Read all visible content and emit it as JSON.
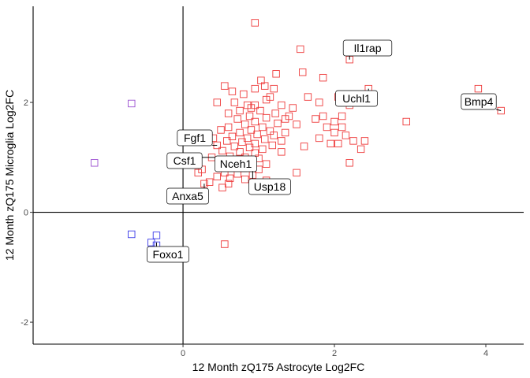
{
  "chart_data": {
    "type": "scatter",
    "xlabel": "12 Month zQ175 Astrocyte Log2FC",
    "ylabel": "12 Month zQ175 Microglia Log2FC",
    "xlim": [
      -1.98,
      4.5
    ],
    "ylim": [
      -2.4,
      3.75
    ],
    "xticks": [
      0,
      2,
      4
    ],
    "yticks": [
      -2,
      0,
      2
    ],
    "xtick_labels": [
      "0",
      "2",
      "4"
    ],
    "ytick_labels": [
      "-2",
      "0",
      "2"
    ],
    "colors": {
      "up": "#ee3b3b",
      "down": "#3a3ae8",
      "mixed": "#9b4fd1"
    },
    "points": [
      {
        "x": 0.95,
        "y": 3.45,
        "g": "up"
      },
      {
        "x": 1.55,
        "y": 2.97,
        "g": "up"
      },
      {
        "x": 2.2,
        "y": 2.78,
        "g": "up"
      },
      {
        "x": 1.58,
        "y": 2.55,
        "g": "up"
      },
      {
        "x": 1.23,
        "y": 2.52,
        "g": "up"
      },
      {
        "x": 1.85,
        "y": 2.45,
        "g": "up"
      },
      {
        "x": 1.03,
        "y": 2.4,
        "g": "up"
      },
      {
        "x": 1.08,
        "y": 2.3,
        "g": "up"
      },
      {
        "x": 0.55,
        "y": 2.3,
        "g": "up"
      },
      {
        "x": 0.95,
        "y": 2.25,
        "g": "up"
      },
      {
        "x": 1.2,
        "y": 2.25,
        "g": "up"
      },
      {
        "x": 0.65,
        "y": 2.2,
        "g": "up"
      },
      {
        "x": 0.8,
        "y": 2.15,
        "g": "up"
      },
      {
        "x": 1.15,
        "y": 2.1,
        "g": "up"
      },
      {
        "x": 0.45,
        "y": 2.0,
        "g": "up"
      },
      {
        "x": 0.68,
        "y": 2.0,
        "g": "up"
      },
      {
        "x": 0.85,
        "y": 1.95,
        "g": "up"
      },
      {
        "x": 0.9,
        "y": 1.9,
        "g": "up"
      },
      {
        "x": 0.95,
        "y": 1.95,
        "g": "up"
      },
      {
        "x": 1.1,
        "y": 2.05,
        "g": "up"
      },
      {
        "x": 1.3,
        "y": 1.95,
        "g": "up"
      },
      {
        "x": 1.45,
        "y": 1.9,
        "g": "up"
      },
      {
        "x": 0.75,
        "y": 1.85,
        "g": "up"
      },
      {
        "x": 1.02,
        "y": 1.85,
        "g": "up"
      },
      {
        "x": 1.22,
        "y": 1.8,
        "g": "up"
      },
      {
        "x": 1.4,
        "y": 1.75,
        "g": "up"
      },
      {
        "x": 0.6,
        "y": 1.8,
        "g": "up"
      },
      {
        "x": 0.88,
        "y": 1.75,
        "g": "up"
      },
      {
        "x": 1.1,
        "y": 1.72,
        "g": "up"
      },
      {
        "x": 1.35,
        "y": 1.7,
        "g": "up"
      },
      {
        "x": 0.72,
        "y": 1.7,
        "g": "up"
      },
      {
        "x": 0.95,
        "y": 1.65,
        "g": "up"
      },
      {
        "x": 1.25,
        "y": 1.62,
        "g": "up"
      },
      {
        "x": 0.82,
        "y": 1.6,
        "g": "up"
      },
      {
        "x": 1.05,
        "y": 1.55,
        "g": "up"
      },
      {
        "x": 1.5,
        "y": 1.6,
        "g": "up"
      },
      {
        "x": 0.6,
        "y": 1.55,
        "g": "up"
      },
      {
        "x": 0.9,
        "y": 1.5,
        "g": "up"
      },
      {
        "x": 1.15,
        "y": 1.48,
        "g": "up"
      },
      {
        "x": 1.35,
        "y": 1.45,
        "g": "up"
      },
      {
        "x": 0.5,
        "y": 1.5,
        "g": "up"
      },
      {
        "x": 0.75,
        "y": 1.45,
        "g": "up"
      },
      {
        "x": 0.98,
        "y": 1.42,
        "g": "up"
      },
      {
        "x": 1.2,
        "y": 1.4,
        "g": "up"
      },
      {
        "x": 0.65,
        "y": 1.38,
        "g": "up"
      },
      {
        "x": 0.85,
        "y": 1.35,
        "g": "up"
      },
      {
        "x": 1.08,
        "y": 1.33,
        "g": "up"
      },
      {
        "x": 1.3,
        "y": 1.3,
        "g": "up"
      },
      {
        "x": 0.4,
        "y": 1.35,
        "g": "up"
      },
      {
        "x": 0.58,
        "y": 1.3,
        "g": "up"
      },
      {
        "x": 0.78,
        "y": 1.28,
        "g": "up"
      },
      {
        "x": 0.95,
        "y": 1.25,
        "g": "up"
      },
      {
        "x": 1.18,
        "y": 1.22,
        "g": "up"
      },
      {
        "x": 0.45,
        "y": 1.22,
        "g": "up"
      },
      {
        "x": 0.68,
        "y": 1.2,
        "g": "up"
      },
      {
        "x": 0.88,
        "y": 1.18,
        "g": "up"
      },
      {
        "x": 1.05,
        "y": 1.15,
        "g": "up"
      },
      {
        "x": 0.52,
        "y": 1.12,
        "g": "up"
      },
      {
        "x": 0.75,
        "y": 1.1,
        "g": "up"
      },
      {
        "x": 0.95,
        "y": 1.08,
        "g": "up"
      },
      {
        "x": 1.3,
        "y": 1.1,
        "g": "up"
      },
      {
        "x": 0.62,
        "y": 1.02,
        "g": "up"
      },
      {
        "x": 0.82,
        "y": 1.0,
        "g": "up"
      },
      {
        "x": 1.0,
        "y": 0.98,
        "g": "up"
      },
      {
        "x": 0.38,
        "y": 1.0,
        "g": "up"
      },
      {
        "x": 0.55,
        "y": 0.95,
        "g": "up"
      },
      {
        "x": 0.7,
        "y": 0.92,
        "g": "up"
      },
      {
        "x": 0.88,
        "y": 0.9,
        "g": "up"
      },
      {
        "x": 1.1,
        "y": 0.88,
        "g": "up"
      },
      {
        "x": 0.48,
        "y": 0.85,
        "g": "up"
      },
      {
        "x": 0.65,
        "y": 0.82,
        "g": "up"
      },
      {
        "x": 0.8,
        "y": 0.8,
        "g": "up"
      },
      {
        "x": 1.0,
        "y": 0.78,
        "g": "up"
      },
      {
        "x": 0.25,
        "y": 0.78,
        "g": "up"
      },
      {
        "x": 0.55,
        "y": 0.72,
        "g": "up"
      },
      {
        "x": 0.72,
        "y": 0.7,
        "g": "up"
      },
      {
        "x": 0.92,
        "y": 0.68,
        "g": "up"
      },
      {
        "x": 0.45,
        "y": 0.65,
        "g": "up"
      },
      {
        "x": 0.62,
        "y": 0.62,
        "g": "up"
      },
      {
        "x": 0.82,
        "y": 0.6,
        "g": "up"
      },
      {
        "x": 1.1,
        "y": 0.58,
        "g": "up"
      },
      {
        "x": 0.35,
        "y": 0.55,
        "g": "up"
      },
      {
        "x": 0.6,
        "y": 0.52,
        "g": "up"
      },
      {
        "x": 0.52,
        "y": 0.45,
        "g": "up"
      },
      {
        "x": 0.2,
        "y": 0.72,
        "g": "up"
      },
      {
        "x": 0.28,
        "y": 0.52,
        "g": "up"
      },
      {
        "x": 1.6,
        "y": 1.2,
        "g": "up"
      },
      {
        "x": 1.5,
        "y": 0.72,
        "g": "up"
      },
      {
        "x": 1.75,
        "y": 1.7,
        "g": "up"
      },
      {
        "x": 1.85,
        "y": 1.75,
        "g": "up"
      },
      {
        "x": 1.9,
        "y": 1.55,
        "g": "up"
      },
      {
        "x": 1.8,
        "y": 1.35,
        "g": "up"
      },
      {
        "x": 2.0,
        "y": 1.45,
        "g": "up"
      },
      {
        "x": 2.05,
        "y": 1.25,
        "g": "up"
      },
      {
        "x": 2.1,
        "y": 1.55,
        "g": "up"
      },
      {
        "x": 2.15,
        "y": 1.4,
        "g": "up"
      },
      {
        "x": 1.95,
        "y": 1.25,
        "g": "up"
      },
      {
        "x": 2.25,
        "y": 1.3,
        "g": "up"
      },
      {
        "x": 2.4,
        "y": 1.3,
        "g": "up"
      },
      {
        "x": 2.35,
        "y": 1.15,
        "g": "up"
      },
      {
        "x": 2.1,
        "y": 1.75,
        "g": "up"
      },
      {
        "x": 2.2,
        "y": 0.9,
        "g": "up"
      },
      {
        "x": 2.45,
        "y": 2.25,
        "g": "up"
      },
      {
        "x": 1.8,
        "y": 2.0,
        "g": "up"
      },
      {
        "x": 2.0,
        "y": 1.65,
        "g": "up"
      },
      {
        "x": 2.2,
        "y": 1.95,
        "g": "up"
      },
      {
        "x": 2.05,
        "y": 2.1,
        "g": "up"
      },
      {
        "x": 1.65,
        "y": 2.1,
        "g": "up"
      },
      {
        "x": 2.95,
        "y": 1.65,
        "g": "up"
      },
      {
        "x": 3.9,
        "y": 2.25,
        "g": "up"
      },
      {
        "x": 4.2,
        "y": 1.85,
        "g": "up"
      },
      {
        "x": 0.55,
        "y": -0.58,
        "g": "up"
      },
      {
        "x": -0.68,
        "y": 1.98,
        "g": "mixed"
      },
      {
        "x": -1.17,
        "y": 0.9,
        "g": "mixed"
      },
      {
        "x": -0.68,
        "y": -0.4,
        "g": "down"
      },
      {
        "x": -0.35,
        "y": -0.42,
        "g": "down"
      },
      {
        "x": -0.42,
        "y": -0.55,
        "g": "down"
      },
      {
        "x": -0.35,
        "y": -0.6,
        "g": "down"
      }
    ],
    "labels": [
      {
        "text": "Il1rap",
        "x": 2.2,
        "y": 2.78
      },
      {
        "text": "Uchl1",
        "x": 2.45,
        "y": 2.25
      },
      {
        "text": "Bmp4",
        "x": 4.2,
        "y": 1.85
      },
      {
        "text": "Fgf1",
        "x": 0.45,
        "y": 1.22
      },
      {
        "text": "Csf1",
        "x": 0.55,
        "y": 1.0
      },
      {
        "text": "Nceh1",
        "x": 0.72,
        "y": 0.92
      },
      {
        "text": "Usp18",
        "x": 0.92,
        "y": 0.75
      },
      {
        "text": "Anxa5",
        "x": 0.28,
        "y": 0.52
      },
      {
        "text": "Foxo1",
        "x": -0.35,
        "y": -0.55
      }
    ]
  }
}
